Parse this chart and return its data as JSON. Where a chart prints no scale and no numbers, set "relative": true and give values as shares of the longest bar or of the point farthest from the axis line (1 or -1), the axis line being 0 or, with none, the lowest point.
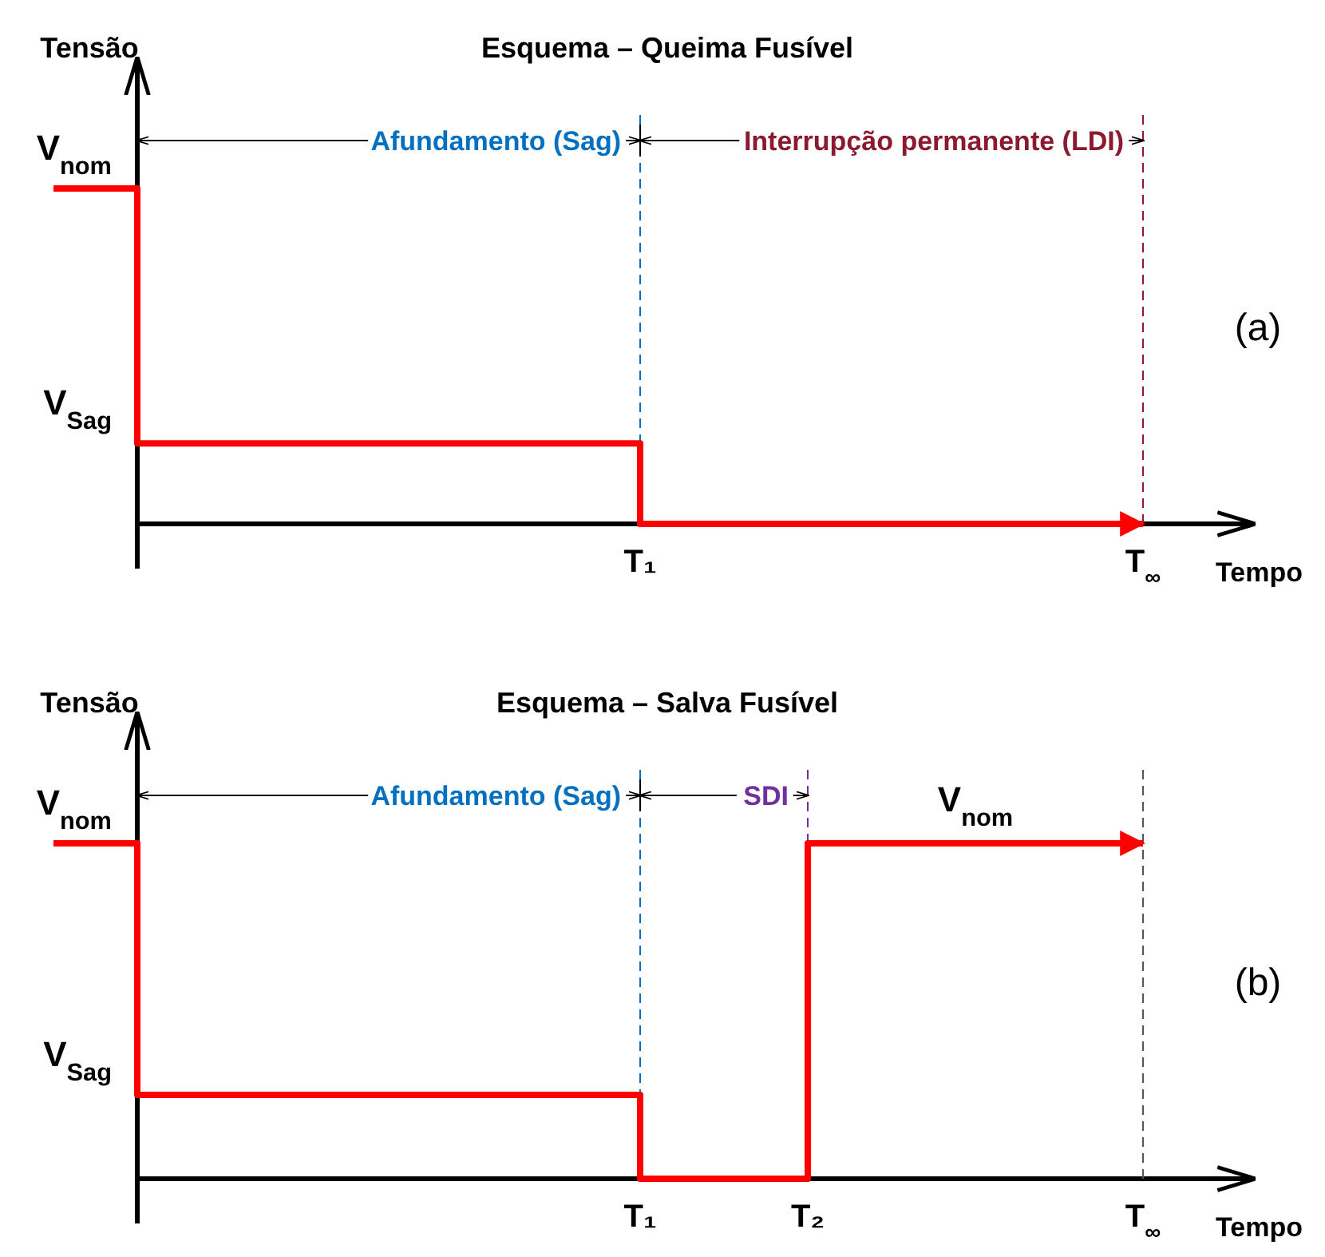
{
  "chart_data": [
    {
      "type": "step",
      "title": "Esquema – Queima Fusível",
      "ylabel": "Tensão",
      "xlabel": "Tempo",
      "relative": true,
      "categories": [
        null,
        null,
        null,
        null,
        null,
        null,
        null,
        "T₁",
        null,
        null,
        null,
        null,
        null,
        "T$_{∞}$"
      ],
      "series": [
        {
          "color": "#ff0000",
          "values": [
            1,
            0.24,
            0.24,
            0.24,
            0.24,
            0.24,
            0.24,
            0,
            0,
            0,
            0,
            0,
            0,
            0
          ]
        }
      ],
      "ref_lines": [
        {
          "axis": "x",
          "value": "T₁",
          "line_style": "dashed",
          "label": "Afundamento (Sag)",
          "color": "#0070c0"
        },
        {
          "axis": "x",
          "value": "T$_{∞}$",
          "line_style": "dashed",
          "label": "Interrupção permanente (LDI)",
          "color": "#8b1a2e"
        }
      ],
      "annotations": [
        "V$_{nom}$",
        "V$_{Sag}$",
        "(a)"
      ]
    },
    {
      "type": "step",
      "title": "Esquema – Salva Fusível",
      "ylabel": "Tensão",
      "xlabel": "Tempo",
      "relative": true,
      "categories": [
        null,
        null,
        null,
        null,
        null,
        null,
        null,
        "T₁",
        null,
        "T₂",
        null,
        null,
        null,
        "T$_{∞}$"
      ],
      "series": [
        {
          "color": "#ff0000",
          "values": [
            1,
            0.25,
            0.25,
            0.25,
            0.25,
            0.25,
            0.25,
            0,
            0,
            1,
            1,
            1,
            1,
            1
          ]
        }
      ],
      "ref_lines": [
        {
          "axis": "x",
          "value": "T₁",
          "line_style": "dashed",
          "label": "Afundamento (Sag)",
          "color": "#0070c0"
        },
        {
          "axis": "x",
          "value": "T₂",
          "line_style": "dashed",
          "label": "SDI",
          "color": "#7030a0"
        },
        {
          "axis": "x",
          "value": "T$_{∞}$",
          "line_style": "dashed"
        }
      ],
      "annotations": [
        "V$_{nom}$",
        "V$_{Sag}$",
        "V$_{nom}$",
        "(b)"
      ]
    }
  ]
}
